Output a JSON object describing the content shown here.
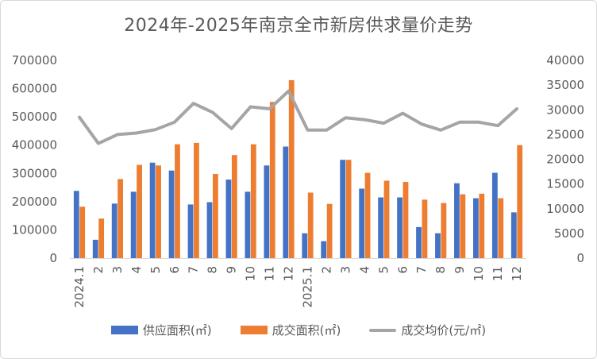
{
  "chart_data": {
    "type": "bar",
    "title": "2024年-2025年南京全市新房供求量价走势",
    "categories": [
      "2024.1",
      "2",
      "3",
      "4",
      "5",
      "6",
      "7",
      "8",
      "9",
      "10",
      "11",
      "12",
      "2025.1",
      "2",
      "3",
      "4",
      "5",
      "6",
      "7",
      "8",
      "9",
      "10",
      "11",
      "12"
    ],
    "series": [
      {
        "name": "供应面积(㎡)",
        "axis": "left",
        "kind": "bar",
        "color": "#4472c4",
        "values": [
          238000,
          65000,
          193000,
          235000,
          338000,
          310000,
          190000,
          198000,
          278000,
          235000,
          328000,
          395000,
          88000,
          60000,
          348000,
          246000,
          215000,
          215000,
          110000,
          88000,
          265000,
          212000,
          302000,
          162000
        ]
      },
      {
        "name": "成交面积(㎡)",
        "axis": "left",
        "kind": "bar",
        "color": "#ed7d31",
        "values": [
          182000,
          140000,
          280000,
          330000,
          328000,
          403000,
          408000,
          298000,
          365000,
          403000,
          553000,
          630000,
          232000,
          192000,
          348000,
          302000,
          274000,
          270000,
          207000,
          195000,
          226000,
          228000,
          212000,
          400000
        ]
      },
      {
        "name": "成交均价(元/㎡)",
        "axis": "right",
        "kind": "line",
        "color": "#a5a5a5",
        "values": [
          28500,
          23200,
          25000,
          25300,
          26000,
          27500,
          31300,
          29500,
          26200,
          30600,
          30200,
          33800,
          25900,
          25900,
          28400,
          28000,
          27300,
          29300,
          27100,
          25900,
          27500,
          27500,
          26800,
          30200
        ]
      }
    ],
    "y_left": {
      "min": 0,
      "max": 700000,
      "ticks": [
        0,
        100000,
        200000,
        300000,
        400000,
        500000,
        600000,
        700000
      ]
    },
    "y_right": {
      "min": 0,
      "max": 40000,
      "ticks": [
        0,
        5000,
        10000,
        15000,
        20000,
        25000,
        30000,
        35000,
        40000
      ]
    },
    "legend": "bottom"
  }
}
